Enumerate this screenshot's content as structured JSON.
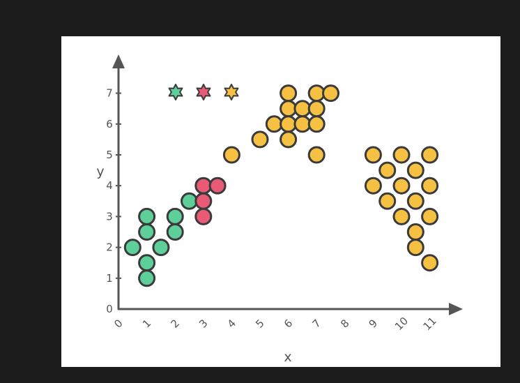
{
  "colors": {
    "background": "#1c1c1c",
    "panel": "#ffffff",
    "axis": "#555555",
    "green": "#5fcf9a",
    "red": "#e85a75",
    "orange": "#f6c143",
    "outline": "#3a3a3a"
  },
  "chart_data": {
    "type": "scatter",
    "xlabel": "x",
    "ylabel": "y",
    "xlim": [
      0,
      11.5
    ],
    "ylim": [
      0,
      7.3
    ],
    "x_ticks": [
      "0",
      "1",
      "2",
      "3",
      "4",
      "5",
      "6",
      "7",
      "8",
      "9",
      "10",
      "11"
    ],
    "y_ticks": [
      "0",
      "1",
      "2",
      "3",
      "4",
      "5",
      "6",
      "7"
    ],
    "grid": false,
    "legend": "top-left",
    "legend_markers": [
      {
        "color": "green",
        "shape": "star"
      },
      {
        "color": "red",
        "shape": "star"
      },
      {
        "color": "orange",
        "shape": "star"
      }
    ],
    "series": [
      {
        "color": "green",
        "points": [
          [
            0.5,
            2
          ],
          [
            1,
            3
          ],
          [
            1,
            2.5
          ],
          [
            1,
            1.5
          ],
          [
            1,
            1
          ],
          [
            1.5,
            2
          ],
          [
            2,
            3
          ],
          [
            2,
            2.5
          ],
          [
            2.5,
            3.5
          ]
        ]
      },
      {
        "color": "red",
        "points": [
          [
            3,
            4
          ],
          [
            3.5,
            4
          ],
          [
            3,
            3.5
          ],
          [
            3,
            3
          ]
        ]
      },
      {
        "color": "orange",
        "points": [
          [
            4,
            5
          ],
          [
            5,
            5.5
          ],
          [
            5.5,
            6
          ],
          [
            6,
            7
          ],
          [
            6,
            6.5
          ],
          [
            6,
            6
          ],
          [
            6,
            5.5
          ],
          [
            6.5,
            6.5
          ],
          [
            6.5,
            6
          ],
          [
            7,
            7
          ],
          [
            7,
            6.5
          ],
          [
            7,
            6
          ],
          [
            7,
            5
          ],
          [
            7.5,
            7
          ],
          [
            9,
            5
          ],
          [
            10,
            5
          ],
          [
            11,
            5
          ],
          [
            9.5,
            4.5
          ],
          [
            10.5,
            4.5
          ],
          [
            9,
            4
          ],
          [
            10,
            4
          ],
          [
            11,
            4
          ],
          [
            9.5,
            3.5
          ],
          [
            10.5,
            3.5
          ],
          [
            10,
            3
          ],
          [
            11,
            3
          ],
          [
            10.5,
            2.5
          ],
          [
            10.5,
            2
          ],
          [
            11,
            1.5
          ]
        ]
      }
    ]
  }
}
